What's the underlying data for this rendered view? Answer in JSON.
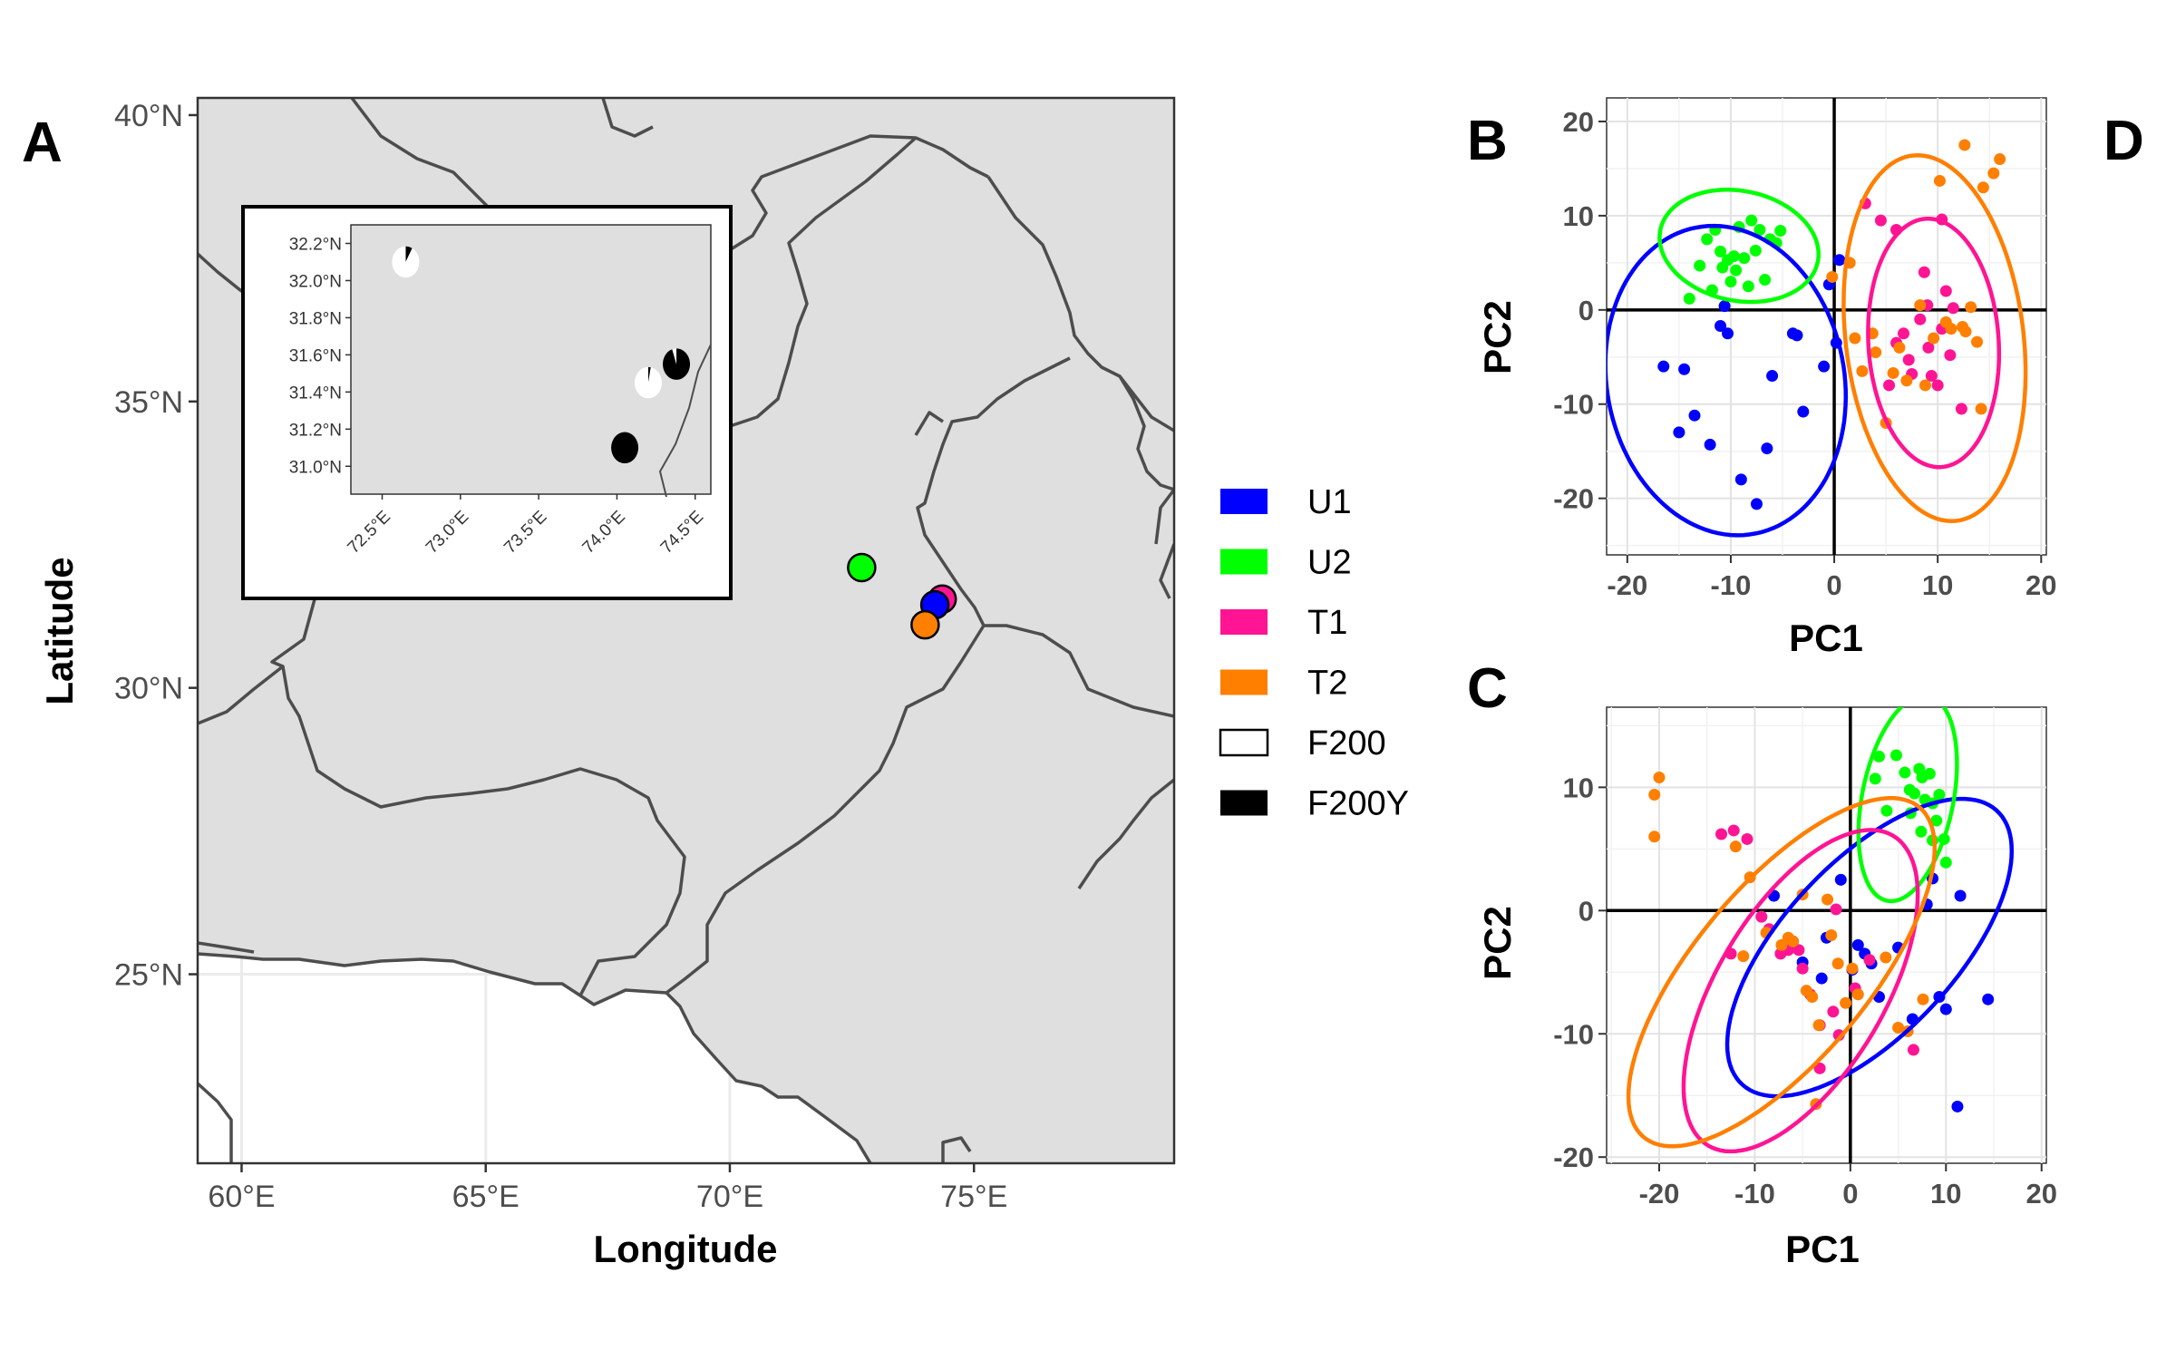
{
  "panel_labels": {
    "a": "A",
    "b": "B",
    "c": "C",
    "d": "D"
  },
  "colors": {
    "U1": "#0000ff",
    "U2": "#00ff00",
    "T1": "#ff1493",
    "T2": "#ff7f00",
    "F200": "#ffffff",
    "F200Y": "#000000",
    "land": "#dfdfdf",
    "border": "#4d4d4d"
  },
  "legend": [
    {
      "label": "U1",
      "color": "#0000ff"
    },
    {
      "label": "U2",
      "color": "#00ff00"
    },
    {
      "label": "T1",
      "color": "#ff1493"
    },
    {
      "label": "T2",
      "color": "#ff7f00"
    },
    {
      "label": "F200",
      "color": "#ffffff"
    },
    {
      "label": "F200Y",
      "color": "#000000"
    }
  ],
  "chart_data": [
    {
      "panel": "A",
      "type": "scatter",
      "subtype": "map",
      "xlabel": "Longitude",
      "ylabel": "Latitude",
      "xlim": [
        59.1,
        79.1
      ],
      "ylim": [
        21.7,
        40.3
      ],
      "x_ticks": [
        60,
        65,
        70,
        75
      ],
      "x_tick_labels": [
        "60°E",
        "65°E",
        "70°E",
        "75°E"
      ],
      "y_ticks": [
        25,
        30,
        35,
        40
      ],
      "y_tick_labels": [
        "25°N",
        "30°N",
        "35°N",
        "40°N"
      ],
      "points": [
        {
          "name": "U2",
          "lon": 72.7,
          "lat": 32.1
        },
        {
          "name": "T1",
          "lon": 74.35,
          "lat": 31.55
        },
        {
          "name": "U1",
          "lon": 74.2,
          "lat": 31.45
        },
        {
          "name": "T2",
          "lon": 74.0,
          "lat": 31.1
        }
      ],
      "inset": {
        "type": "pie",
        "xlim": [
          72.3,
          74.6
        ],
        "ylim": [
          30.85,
          32.3
        ],
        "x_ticks": [
          72.5,
          73.0,
          73.5,
          74.0,
          74.5
        ],
        "x_tick_labels": [
          "72.5°E",
          "73.0°E",
          "73.5°E",
          "74.0°E",
          "74.5°E"
        ],
        "y_ticks": [
          31.0,
          31.2,
          31.4,
          31.6,
          31.8,
          32.0,
          32.2
        ],
        "y_tick_labels": [
          "31.0°N",
          "31.2°N",
          "31.4°N",
          "31.6°N",
          "31.8°N",
          "32.0°N",
          "32.2°N"
        ],
        "pies": [
          {
            "lon": 72.65,
            "lat": 32.1,
            "F200": 0.92,
            "F200Y": 0.08
          },
          {
            "lon": 74.2,
            "lat": 31.45,
            "F200": 0.97,
            "F200Y": 0.03
          },
          {
            "lon": 74.38,
            "lat": 31.55,
            "F200": 0.05,
            "F200Y": 0.95
          },
          {
            "lon": 74.05,
            "lat": 31.1,
            "F200": 0.0,
            "F200Y": 1.0
          }
        ]
      }
    },
    {
      "panel": "B",
      "type": "scatter",
      "xlabel": "PC1",
      "ylabel": "PC2",
      "xlim": [
        -22,
        20.5
      ],
      "ylim": [
        -26,
        22.5
      ],
      "x_ticks": [
        -20,
        -10,
        0,
        10,
        20
      ],
      "y_ticks": [
        -20,
        -10,
        0,
        10,
        20
      ],
      "x_tick_labels": [
        "-20",
        "-10",
        "0",
        "10",
        "20"
      ],
      "y_tick_labels": [
        "-20",
        "-10",
        "0",
        "10",
        "20"
      ],
      "series": [
        {
          "name": "U1",
          "ellipse": {
            "cx": -10.5,
            "cy": -7.5,
            "rx": 11.5,
            "ry": 16.5,
            "angle": 8
          },
          "points": [
            [
              -16.5,
              -6
            ],
            [
              -15,
              -13
            ],
            [
              -14.5,
              -6.3
            ],
            [
              -13.5,
              -11.2
            ],
            [
              -12,
              -14.3
            ],
            [
              -11,
              -1.7
            ],
            [
              -10.3,
              -2.5
            ],
            [
              -10.6,
              0.4
            ],
            [
              -9,
              -18
            ],
            [
              -7.5,
              -20.6
            ],
            [
              -6.5,
              -14.7
            ],
            [
              -6,
              -7
            ],
            [
              -4,
              -2.5
            ],
            [
              -3.6,
              -2.7
            ],
            [
              -3,
              -10.8
            ],
            [
              -1,
              -6
            ],
            [
              0.2,
              -3.5
            ],
            [
              0.5,
              5.3
            ],
            [
              -0.5,
              2.7
            ]
          ]
        },
        {
          "name": "U2",
          "ellipse": {
            "cx": -9.2,
            "cy": 6.8,
            "rx": 7.8,
            "ry": 5.8,
            "angle": -15
          },
          "points": [
            [
              -14,
              1.2
            ],
            [
              -13,
              4.7
            ],
            [
              -12.3,
              7.5
            ],
            [
              -11.5,
              8.5
            ],
            [
              -11,
              6.2
            ],
            [
              -10.8,
              4.5
            ],
            [
              -10.3,
              5.3
            ],
            [
              -10,
              3
            ],
            [
              -9.7,
              5.7
            ],
            [
              -9.5,
              4.2
            ],
            [
              -9.2,
              8.8
            ],
            [
              -8.7,
              5.5
            ],
            [
              -8.3,
              2.5
            ],
            [
              -8,
              9.5
            ],
            [
              -7.6,
              6.3
            ],
            [
              -7.2,
              8.5
            ],
            [
              -6.7,
              3.2
            ],
            [
              -6.2,
              7.5
            ],
            [
              -5.6,
              7.1
            ],
            [
              -5.2,
              8.4
            ],
            [
              -11.8,
              2.1
            ]
          ]
        },
        {
          "name": "T1",
          "ellipse": {
            "cx": 9.6,
            "cy": -3.5,
            "rx": 6.3,
            "ry": 13.2,
            "angle": 3
          },
          "points": [
            [
              3,
              11.3
            ],
            [
              4.5,
              9.5
            ],
            [
              6,
              8.5
            ],
            [
              6.7,
              -2.5
            ],
            [
              7.2,
              -5.3
            ],
            [
              7.5,
              -6.8
            ],
            [
              8.3,
              -1
            ],
            [
              8.7,
              4
            ],
            [
              9.1,
              -4
            ],
            [
              9.4,
              -7
            ],
            [
              10,
              -8
            ],
            [
              10.4,
              9.6
            ],
            [
              10.8,
              2
            ],
            [
              11.2,
              -4.8
            ],
            [
              11.5,
              0.2
            ],
            [
              12.3,
              -10.5
            ],
            [
              6,
              -3.5
            ],
            [
              5.3,
              -8
            ],
            [
              9,
              0.5
            ],
            [
              10.4,
              -2
            ]
          ]
        },
        {
          "name": "T2",
          "ellipse": {
            "cx": 9.7,
            "cy": -3.0,
            "rx": 8.6,
            "ry": 19.5,
            "angle": 6
          },
          "points": [
            [
              -0.2,
              3.5
            ],
            [
              1.5,
              5
            ],
            [
              2,
              -3
            ],
            [
              2.7,
              -6.5
            ],
            [
              3.7,
              -2.5
            ],
            [
              4,
              -4.5
            ],
            [
              5,
              -12
            ],
            [
              5.7,
              -6.7
            ],
            [
              6.3,
              -4
            ],
            [
              7,
              -7.5
            ],
            [
              8.3,
              0.5
            ],
            [
              8.8,
              -8
            ],
            [
              9.6,
              -3
            ],
            [
              10.8,
              -1.3
            ],
            [
              11.3,
              -2
            ],
            [
              12.4,
              -1.8
            ],
            [
              12.7,
              -2.3
            ],
            [
              13.2,
              0.3
            ],
            [
              13.8,
              -3.4
            ],
            [
              14.2,
              -10.5
            ],
            [
              14.4,
              13
            ],
            [
              15.4,
              14.5
            ],
            [
              16,
              16
            ],
            [
              12.6,
              17.5
            ],
            [
              10.2,
              13.7
            ]
          ]
        }
      ]
    },
    {
      "panel": "C",
      "type": "scatter",
      "xlabel": "PC1",
      "ylabel": "PC2",
      "xlim": [
        -25.5,
        20.5
      ],
      "ylim": [
        -20.5,
        16.5
      ],
      "x_ticks": [
        -20,
        -10,
        0,
        10,
        20
      ],
      "y_ticks": [
        -20,
        -10,
        0,
        10
      ],
      "x_tick_labels": [
        "-20",
        "-10",
        "0",
        "10",
        "20"
      ],
      "y_tick_labels": [
        "-20",
        "-10",
        "0",
        "10"
      ],
      "series": [
        {
          "name": "U1",
          "ellipse": {
            "cx": 2.0,
            "cy": -3.0,
            "rx": 17.5,
            "ry": 7.8,
            "angle": 36
          },
          "points": [
            [
              -8,
              1.2
            ],
            [
              -6,
              -2.5
            ],
            [
              -5,
              -4.2
            ],
            [
              -3,
              -5.5
            ],
            [
              -2.5,
              -2.2
            ],
            [
              -1,
              2.5
            ],
            [
              0.2,
              -4.8
            ],
            [
              0.8,
              -2.8
            ],
            [
              1.5,
              -3.5
            ],
            [
              2.2,
              -4.3
            ],
            [
              3,
              -7
            ],
            [
              5,
              -3
            ],
            [
              6.5,
              -8.8
            ],
            [
              8,
              0.5
            ],
            [
              9.3,
              -7
            ],
            [
              10,
              -8
            ],
            [
              11.2,
              -15.9
            ],
            [
              14.4,
              -7.2
            ],
            [
              11.5,
              1.2
            ],
            [
              8.6,
              2.6
            ]
          ]
        },
        {
          "name": "U2",
          "ellipse": {
            "cx": 6.0,
            "cy": 9.1,
            "rx": 4.7,
            "ry": 8.6,
            "angle": -17
          },
          "points": [
            [
              2.6,
              10.7
            ],
            [
              3,
              12.5
            ],
            [
              3.8,
              8.1
            ],
            [
              4.8,
              12.6
            ],
            [
              5.7,
              11.2
            ],
            [
              6.2,
              9.8
            ],
            [
              6.7,
              9.5
            ],
            [
              7.2,
              11.5
            ],
            [
              7.5,
              10.8
            ],
            [
              7.8,
              9
            ],
            [
              8.3,
              11.1
            ],
            [
              8.6,
              8.7
            ],
            [
              9,
              7.3
            ],
            [
              9.3,
              9.4
            ],
            [
              9.8,
              5.8
            ],
            [
              10,
              3.9
            ],
            [
              8.6,
              5.7
            ],
            [
              7.4,
              6.4
            ],
            [
              6.3,
              7.9
            ]
          ]
        },
        {
          "name": "T1",
          "ellipse": {
            "cx": -5.2,
            "cy": -6.5,
            "rx": 16.0,
            "ry": 8.0,
            "angle": 48
          },
          "points": [
            [
              -13.5,
              6.2
            ],
            [
              -12.2,
              6.5
            ],
            [
              -12.5,
              -3.5
            ],
            [
              -10.8,
              5.8
            ],
            [
              -9.3,
              -0.5
            ],
            [
              -8.5,
              -1.5
            ],
            [
              -7.3,
              -3.5
            ],
            [
              -6.5,
              -3.2
            ],
            [
              -5.4,
              -3.2
            ],
            [
              -5,
              -4.7
            ],
            [
              -4.2,
              -6.8
            ],
            [
              -3.2,
              -9.3
            ],
            [
              -1.8,
              -8.2
            ],
            [
              -1.2,
              -10.1
            ],
            [
              0.5,
              -6.3
            ],
            [
              -3.2,
              -12.8
            ],
            [
              6.6,
              -11.3
            ],
            [
              2,
              -4
            ],
            [
              -1.5,
              0.1
            ]
          ]
        },
        {
          "name": "T2",
          "ellipse": {
            "cx": -7.2,
            "cy": -5.0,
            "rx": 19.8,
            "ry": 8.0,
            "angle": 40
          },
          "points": [
            [
              -20.5,
              9.4
            ],
            [
              -20,
              10.8
            ],
            [
              -20.5,
              6
            ],
            [
              -12,
              5.2
            ],
            [
              -11.2,
              -3.7
            ],
            [
              -10.5,
              2.7
            ],
            [
              -8.8,
              -1.8
            ],
            [
              -7.2,
              -2.8
            ],
            [
              -6.5,
              -2.2
            ],
            [
              -6,
              -2.5
            ],
            [
              -4.6,
              -6.5
            ],
            [
              -4,
              -7
            ],
            [
              -3.3,
              -9.3
            ],
            [
              -2,
              -2
            ],
            [
              -1.3,
              -4.3
            ],
            [
              -0.5,
              -7.5
            ],
            [
              0.2,
              -4.7
            ],
            [
              0.8,
              -6.8
            ],
            [
              -3.6,
              -15.7
            ],
            [
              5,
              -9.5
            ],
            [
              6,
              -9.8
            ],
            [
              7.6,
              -7.2
            ],
            [
              3.7,
              -3.8
            ],
            [
              -5,
              1.3
            ],
            [
              -2.4,
              0.9
            ]
          ]
        }
      ]
    }
  ]
}
